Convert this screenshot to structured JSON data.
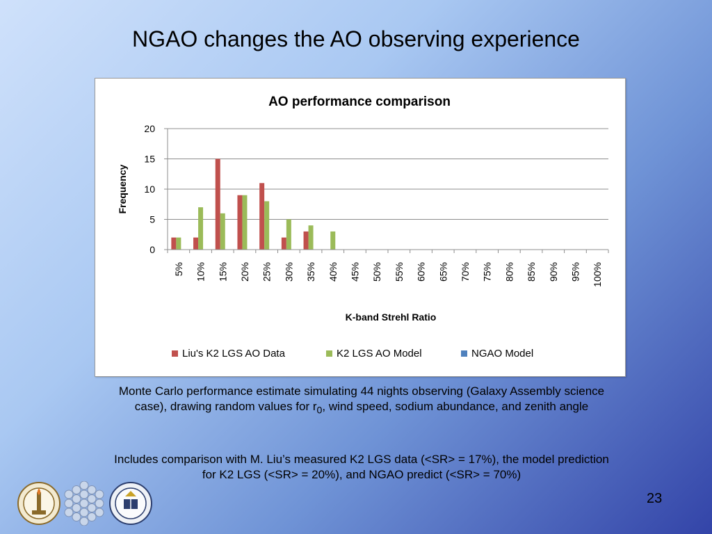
{
  "slide": {
    "title": "NGAO changes the AO observing experience",
    "caption_1_before_sub": "Monte Carlo performance estimate simulating 44 nights observing (Galaxy Assembly science case), drawing random values for r",
    "caption_1_sub": "0",
    "caption_1_after_sub": ", wind speed, sodium abundance, and zenith angle",
    "caption_2": "Includes comparison with M. Liu’s measured K2 LGS data (<SR> = 17%), the model prediction for K2 LGS (<SR> = 20%), and NGAO predict (<SR> = 70%)",
    "slide_number": "23",
    "logos": [
      "caltech-seal",
      "keck-mirror-segments",
      "university-of-california-seal"
    ]
  },
  "chart_data": {
    "type": "bar",
    "title": "AO performance comparison",
    "xlabel": "K-band Strehl Ratio",
    "ylabel": "Frequency",
    "ylim": [
      0,
      20
    ],
    "yticks": [
      0,
      5,
      10,
      15,
      20
    ],
    "grid": true,
    "legend_position": "bottom",
    "categories": [
      "5%",
      "10%",
      "15%",
      "20%",
      "25%",
      "30%",
      "35%",
      "40%",
      "45%",
      "50%",
      "55%",
      "60%",
      "65%",
      "70%",
      "75%",
      "80%",
      "85%",
      "90%",
      "95%",
      "100%"
    ],
    "series": [
      {
        "name": "Liu's K2 LGS AO Data",
        "color": "#c0504d",
        "values": [
          2,
          2,
          15,
          9,
          11,
          2,
          3,
          0,
          0,
          0,
          0,
          0,
          0,
          0,
          0,
          0,
          0,
          0,
          0,
          0
        ]
      },
      {
        "name": "K2 LGS AO Model",
        "color": "#9bbb59",
        "values": [
          2,
          7,
          6,
          9,
          8,
          5,
          4,
          3,
          0,
          0,
          0,
          0,
          0,
          0,
          0,
          0,
          0,
          0,
          0,
          0
        ]
      },
      {
        "name": "NGAO Model",
        "color": "#4f81bd",
        "values": [
          0,
          0,
          0,
          0,
          0,
          0,
          0,
          0,
          0,
          0,
          0,
          0,
          0,
          0,
          0,
          0,
          0,
          0,
          0,
          0
        ]
      }
    ]
  }
}
